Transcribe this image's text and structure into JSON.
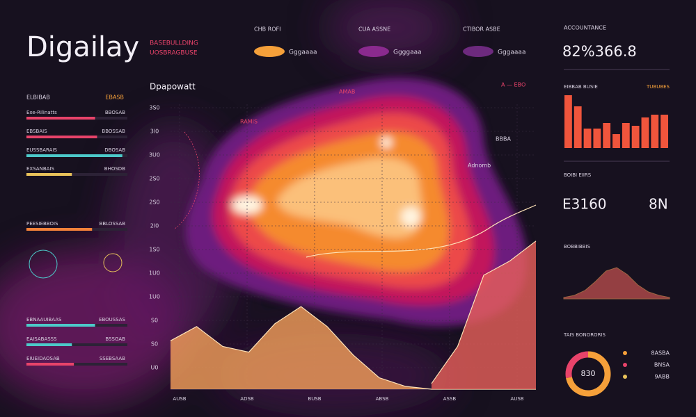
{
  "header": {
    "title": "Digailay",
    "subtitle": [
      "BASEBULLDING",
      "UOSBRAGBUSE"
    ]
  },
  "legend": [
    {
      "heading": "CHB ROFI",
      "label": "Gggaaaa",
      "color": "#f5a03a"
    },
    {
      "heading": "CUA ASSNE",
      "label": "Ggggaaa",
      "color": "#8a2a8e"
    },
    {
      "heading": "CTIBOR ASBE",
      "label": "Gggaaaa",
      "color": "#6d2a7e"
    }
  ],
  "left": {
    "heading": "ELBIBAB",
    "heading_right": "EBASB",
    "rows": [
      {
        "label": "Exe-Rilinatts",
        "tag": "BBOSAB",
        "value": 68,
        "color": "#e8436a"
      },
      {
        "label": "EBSBAIS",
        "tag": "BBOSSAB",
        "value": 70,
        "color": "#e8436a"
      },
      {
        "label": "EUSSBARAIS",
        "tag": "DBOSAB",
        "value": 95,
        "color": "#4cc9c9"
      },
      {
        "label": "EXSANBAIS",
        "tag": "BHOSDB",
        "value": 45,
        "color": "#e8c25a"
      },
      {
        "label": "PEESIEBBOIS",
        "tag": "BBLOSSAB",
        "value": 65,
        "color": "#f5823a"
      },
      {
        "label": "EBNAAUIBAAS",
        "tag": "EBOUSSAS",
        "value": 68,
        "color": "#4cc9c9"
      },
      {
        "label": "EAISABASSS",
        "tag": "BSSGAB",
        "value": 45,
        "color": "#4cc9c9"
      },
      {
        "label": "EIUEIDAOSAB",
        "tag": "SSEBSAAB",
        "value": 47,
        "color": "#e8436a"
      }
    ]
  },
  "main": {
    "title": "Dpapowatt",
    "yticks": [
      "3S0",
      "3l0",
      "3U0",
      "2S0",
      "2S0",
      "2l0",
      "1S0",
      "1U0",
      "1U0",
      "S0",
      "S0",
      "U0"
    ],
    "xticks": [
      "AUSB",
      "ADSB",
      "BUSB",
      "ABSB",
      "ASSB",
      "AUSB"
    ],
    "annotations": [
      "RAMIS",
      "AMAB",
      "A — EBO",
      "BBBA",
      "Adnomb"
    ],
    "ylim": [
      0,
      100
    ],
    "series": [
      {
        "color": "#f5a05a",
        "values": [
          17,
          22,
          15,
          13,
          23,
          29,
          22,
          12,
          4,
          1,
          0,
          0,
          0,
          0,
          0
        ]
      },
      {
        "color": "#e8605a",
        "values": [
          null,
          null,
          null,
          null,
          null,
          null,
          null,
          null,
          null,
          null,
          2,
          15,
          40,
          45,
          52
        ]
      }
    ]
  },
  "right": {
    "heading": "ACCOUNTANCE",
    "kpi": "82%366.8",
    "bars_heading": "EIBBAB BUSIE",
    "bars_tag": "TUBUBES",
    "bars": {
      "color": "#f0553c",
      "ylim": [
        0,
        100
      ],
      "values": [
        95,
        75,
        35,
        35,
        45,
        25,
        45,
        40,
        55,
        60,
        60
      ]
    },
    "stats_heading": "BOIBI EIIRS",
    "stat_a": "E3160",
    "stat_b": "8N",
    "dist_heading": "BOBBIBBIS",
    "dist": {
      "color": "#e8605a",
      "values": [
        2,
        5,
        12,
        25,
        40,
        45,
        35,
        20,
        10,
        5,
        2
      ]
    },
    "donut_heading": "TAIS BONORORIS",
    "donut_label": "830",
    "donut": [
      {
        "value": 72,
        "color": "#f5a03a"
      },
      {
        "value": 28,
        "color": "#e8436a"
      }
    ],
    "donut_legend": [
      "8ASBA",
      "BNSA",
      "9ABB"
    ]
  }
}
